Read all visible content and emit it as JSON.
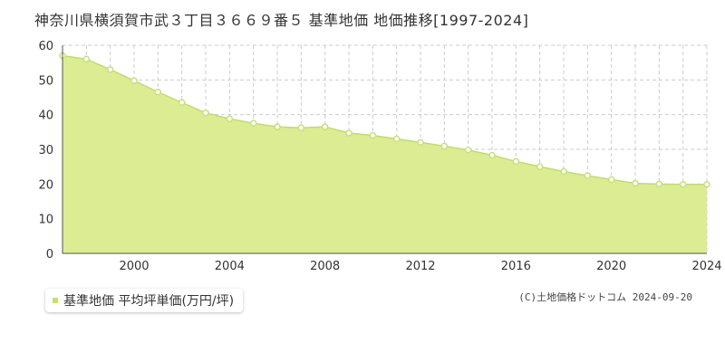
{
  "title": "神奈川県横須賀市武３丁目３６６９番５ 基準地価 地価推移[1997-2024]",
  "legend": {
    "label": "基準地価 平均坪単価(万円/坪)"
  },
  "copyright": "(C)土地価格ドットコム 2024-09-20",
  "colors": {
    "area_fill": "#dcec92",
    "line": "#c0dc6a",
    "marker_stroke": "#c8e07a",
    "marker_fill": "#ffffff",
    "grid": "#cccccc",
    "plot_bg": "#ffffff"
  },
  "chart_data": {
    "type": "area",
    "x": [
      1997,
      1998,
      1999,
      2000,
      2001,
      2002,
      2003,
      2004,
      2005,
      2006,
      2007,
      2008,
      2009,
      2010,
      2011,
      2012,
      2013,
      2014,
      2015,
      2016,
      2017,
      2018,
      2019,
      2020,
      2021,
      2022,
      2023,
      2024
    ],
    "series": [
      {
        "name": "基準地価 平均坪単価(万円/坪)",
        "values": [
          57.0,
          56.0,
          53.0,
          49.8,
          46.5,
          43.5,
          40.5,
          38.8,
          37.5,
          36.5,
          36.2,
          36.5,
          34.7,
          34.0,
          33.0,
          32.0,
          30.9,
          29.8,
          28.3,
          26.5,
          25.0,
          23.6,
          22.4,
          21.3,
          20.2,
          20.0,
          19.9,
          19.9
        ]
      }
    ],
    "xlim": [
      1997,
      2024
    ],
    "ylim": [
      0,
      60
    ],
    "yticks": [
      0,
      10,
      20,
      30,
      40,
      50,
      60
    ],
    "xticks": [
      2000,
      2004,
      2008,
      2012,
      2016,
      2020,
      2024
    ],
    "grid": true,
    "legend_position": "bottom-left"
  }
}
